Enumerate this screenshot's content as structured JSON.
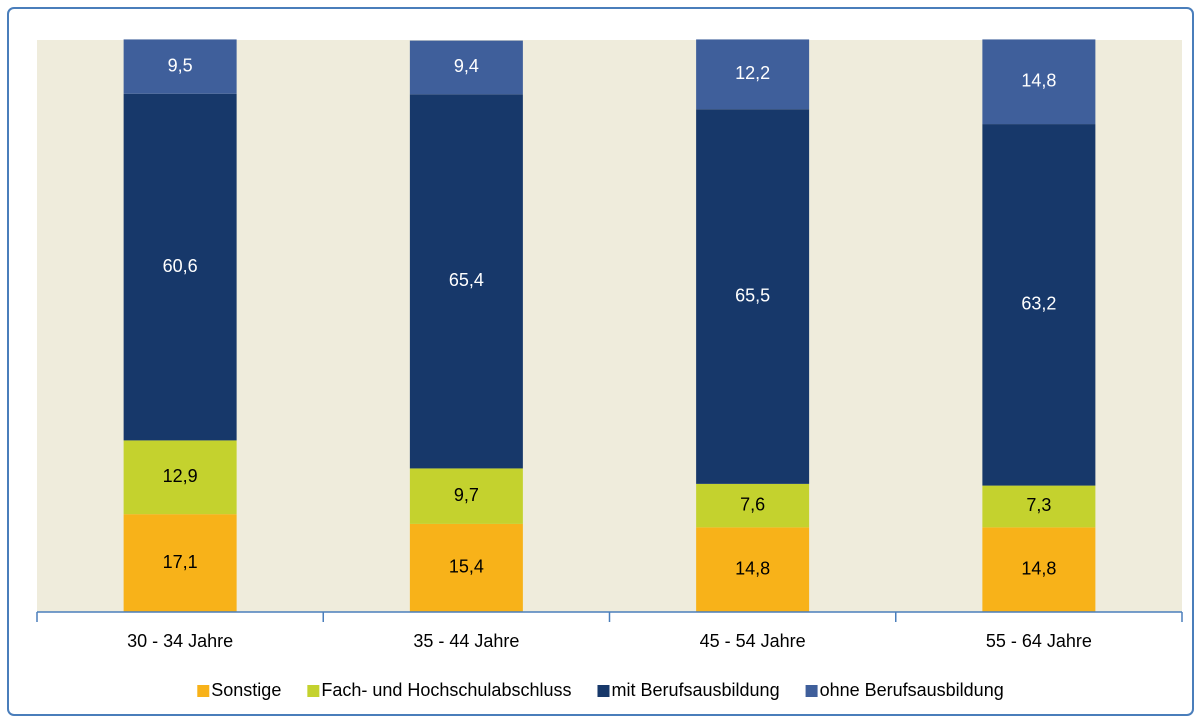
{
  "chart_data": {
    "type": "stacked_bar",
    "categories": [
      "30 - 34 Jahre",
      "35 - 44 Jahre",
      "45 - 54 Jahre",
      "55 - 64 Jahre"
    ],
    "series": [
      {
        "name": "Sonstige",
        "color": "#F8B219",
        "values": [
          17.1,
          15.4,
          14.8,
          14.8
        ],
        "value_labels": [
          "17,1",
          "15,4",
          "14,8",
          "14,8"
        ]
      },
      {
        "name": "Fach- und Hochschulabschluss",
        "color": "#C4D22E",
        "values": [
          12.9,
          9.7,
          7.6,
          7.3
        ],
        "value_labels": [
          "12,9",
          "9,7",
          "7,6",
          "7,3"
        ]
      },
      {
        "name": "mit Berufsausbildung",
        "color": "#17386A",
        "values": [
          60.6,
          65.4,
          65.5,
          63.2
        ],
        "value_labels": [
          "60,6",
          "65,4",
          "65,5",
          "63,2"
        ]
      },
      {
        "name": "ohne Berufsausbildung",
        "color": "#3F5F9B",
        "values": [
          9.5,
          9.4,
          12.2,
          14.8
        ],
        "value_labels": [
          "9,5",
          "9,4",
          "12,2",
          "14,8"
        ]
      }
    ],
    "ylim": [
      0,
      100
    ]
  }
}
